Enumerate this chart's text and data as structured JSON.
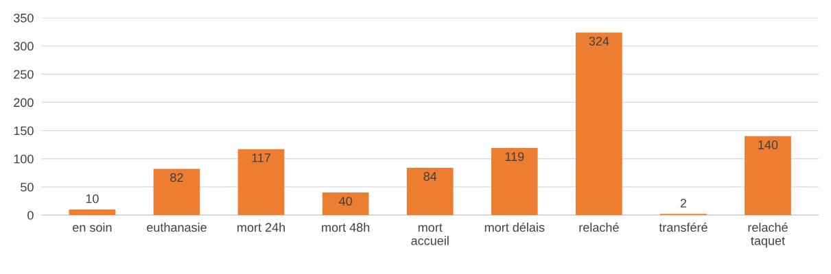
{
  "chart_data": {
    "type": "bar",
    "categories": [
      "en soin",
      "euthanasie",
      "mort 24h",
      "mort 48h",
      "mort\naccueil",
      "mort délais",
      "relaché",
      "transféré",
      "relaché\ntaquet"
    ],
    "values": [
      10,
      82,
      117,
      40,
      84,
      119,
      324,
      2,
      140
    ],
    "color": "#ed7d31",
    "ylim": [
      0,
      350
    ],
    "yticks": [
      0,
      50,
      100,
      150,
      200,
      250,
      300,
      350
    ],
    "grid": "y",
    "data_labels": true
  }
}
